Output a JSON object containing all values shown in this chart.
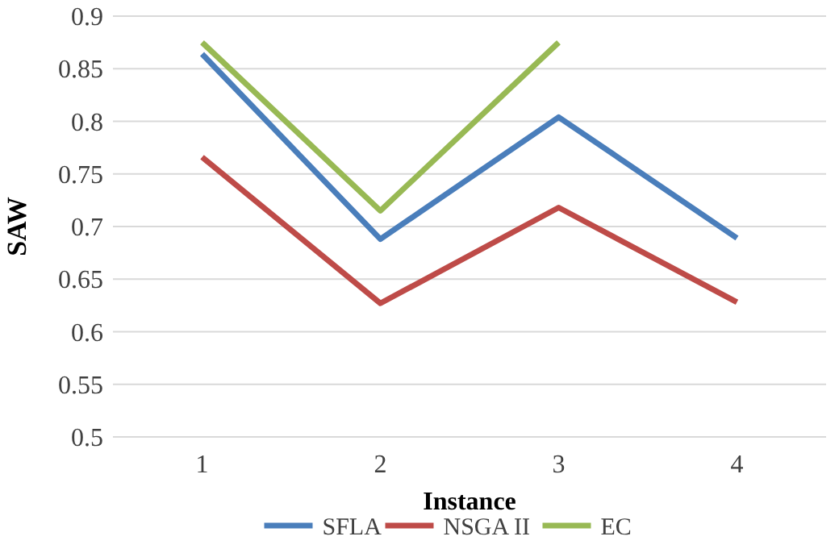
{
  "chart_data": {
    "type": "line",
    "xlabel": "Instance",
    "ylabel": "SAW",
    "categories": [
      "1",
      "2",
      "3",
      "4"
    ],
    "series": [
      {
        "name": "SFLA",
        "color": "#4a7ebb",
        "values": [
          0.864,
          0.688,
          0.804,
          0.689
        ]
      },
      {
        "name": "NSGA II",
        "color": "#be4b48",
        "values": [
          0.766,
          0.627,
          0.718,
          0.628
        ]
      },
      {
        "name": "EC",
        "color": "#98b954",
        "values": [
          0.875,
          0.715,
          0.875,
          null
        ]
      }
    ],
    "ylim": [
      0.5,
      0.9
    ],
    "yticks": [
      0.5,
      0.55,
      0.6,
      0.65,
      0.7,
      0.75,
      0.8,
      0.85,
      0.9
    ],
    "grid": "y",
    "legend": "bottom",
    "marker": "none",
    "line_style": "solid"
  }
}
